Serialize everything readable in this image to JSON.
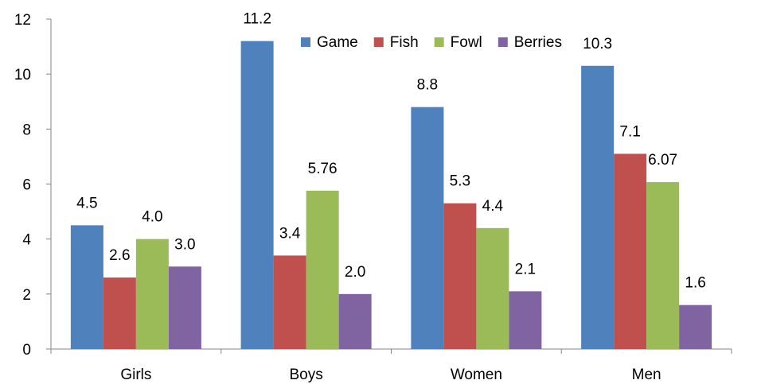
{
  "chart_data": {
    "type": "bar",
    "categories": [
      "Girls",
      "Boys",
      "Women",
      "Men"
    ],
    "series": [
      {
        "name": "Game",
        "color": "#4F81BD",
        "values": [
          4.5,
          11.2,
          8.8,
          10.3
        ],
        "labels": [
          "4.5",
          "11.2",
          "8.8",
          "10.3"
        ]
      },
      {
        "name": "Fish",
        "color": "#C0504D",
        "values": [
          2.6,
          3.4,
          5.3,
          7.1
        ],
        "labels": [
          "2.6",
          "3.4",
          "5.3",
          "7.1"
        ]
      },
      {
        "name": "Fowl",
        "color": "#9BBB59",
        "values": [
          4.0,
          5.76,
          4.4,
          6.07
        ],
        "labels": [
          "4.0",
          "5.76",
          "4.4",
          "6.07"
        ]
      },
      {
        "name": "Berries",
        "color": "#8064A2",
        "values": [
          3.0,
          2.0,
          2.1,
          1.6
        ],
        "labels": [
          "3.0",
          "2.0",
          "2.1",
          "1.6"
        ]
      }
    ],
    "ylim": [
      0,
      12
    ],
    "yticks": [
      0,
      2,
      4,
      6,
      8,
      10,
      12
    ],
    "grid": false,
    "legend": "top-center"
  }
}
